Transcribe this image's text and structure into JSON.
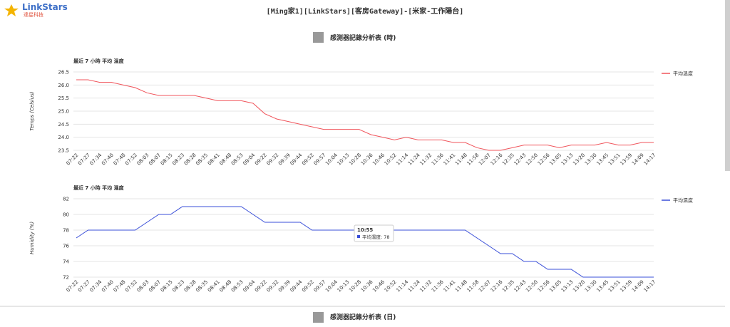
{
  "header": {
    "brand": "LinkStars",
    "brand_sub": "達星科技",
    "title": "[Ming家1][LinkStars][客房Gateway]-[米家-工作陽台]"
  },
  "sections": [
    "感測器記錄分析表 (時)",
    "感測器記錄分析表 (日)"
  ],
  "chart_data": [
    {
      "type": "line",
      "title": "最近 7 小時 平均 溫度",
      "y_label": "Temps (Celsius)",
      "categories": [
        "07:22",
        "07:27",
        "07:34",
        "07:40",
        "07:48",
        "07:52",
        "08:03",
        "08:07",
        "08:15",
        "08:23",
        "08:28",
        "08:35",
        "08:41",
        "08:48",
        "08:53",
        "09:04",
        "09:22",
        "09:32",
        "09:39",
        "09:44",
        "09:52",
        "09:57",
        "10:04",
        "10:13",
        "10:28",
        "10:36",
        "10:46",
        "10:52",
        "11:14",
        "11:24",
        "11:32",
        "11:36",
        "11:41",
        "11:48",
        "11:58",
        "12:07",
        "12:16",
        "12:35",
        "12:43",
        "12:50",
        "12:56",
        "13:05",
        "13:13",
        "13:20",
        "13:30",
        "13:45",
        "13:51",
        "13:59",
        "14:09",
        "14:17"
      ],
      "series": [
        {
          "name": "平均溫度",
          "color": "#f0545b",
          "values": [
            26.2,
            26.2,
            26.1,
            26.1,
            26.0,
            25.9,
            25.7,
            25.6,
            25.6,
            25.6,
            25.6,
            25.5,
            25.4,
            25.4,
            25.4,
            25.3,
            24.9,
            24.7,
            24.6,
            24.5,
            24.4,
            24.3,
            24.3,
            24.3,
            24.3,
            24.1,
            24.0,
            23.9,
            24.0,
            23.9,
            23.9,
            23.9,
            23.8,
            23.8,
            23.6,
            23.5,
            23.5,
            23.6,
            23.7,
            23.7,
            23.7,
            23.6,
            23.7,
            23.7,
            23.7,
            23.8,
            23.7,
            23.7,
            23.8,
            23.8
          ]
        }
      ],
      "ylim": [
        23.5,
        26.5
      ],
      "yticks": [
        23.5,
        {
          "value": 24,
          "label": "24.0"
        },
        24.5,
        {
          "value": 25,
          "label": "25.0"
        },
        25.5,
        {
          "value": 26,
          "label": "26.0"
        },
        26.5
      ],
      "grid": true,
      "legend": "right"
    },
    {
      "type": "line",
      "title": "最近 7 小時 平均 濕度",
      "y_label": "Humidity (%)",
      "categories": [
        "07:22",
        "07:27",
        "07:34",
        "07:40",
        "07:48",
        "07:52",
        "08:03",
        "08:07",
        "08:15",
        "08:23",
        "08:28",
        "08:35",
        "08:41",
        "08:48",
        "08:53",
        "09:04",
        "09:22",
        "09:32",
        "09:39",
        "09:44",
        "09:52",
        "09:57",
        "10:04",
        "10:13",
        "10:28",
        "10:36",
        "10:46",
        "10:52",
        "11:14",
        "11:24",
        "11:32",
        "11:36",
        "11:41",
        "11:48",
        "11:58",
        "12:07",
        "12:16",
        "12:35",
        "12:43",
        "12:50",
        "12:56",
        "13:05",
        "13:13",
        "13:20",
        "13:30",
        "13:45",
        "13:51",
        "13:59",
        "14:09",
        "14:17"
      ],
      "series": [
        {
          "name": "平均濕度",
          "color": "#3a4fd8",
          "values": [
            77,
            78,
            78,
            78,
            78,
            78,
            79,
            80,
            80,
            81,
            81,
            81,
            81,
            81,
            81,
            80,
            79,
            79,
            79,
            79,
            78,
            78,
            78,
            78,
            78,
            78,
            78,
            78,
            78,
            78,
            78,
            78,
            78,
            78,
            77,
            76,
            75,
            75,
            74,
            74,
            73,
            73,
            73,
            72,
            72,
            72,
            72,
            72,
            72,
            72
          ]
        }
      ],
      "ylim": [
        72,
        82
      ],
      "yticks": [
        72,
        74,
        76,
        78,
        80,
        82
      ],
      "grid": true,
      "legend": "right",
      "tooltip": {
        "title": "10:55",
        "text": "平均濕度: 78"
      }
    }
  ]
}
